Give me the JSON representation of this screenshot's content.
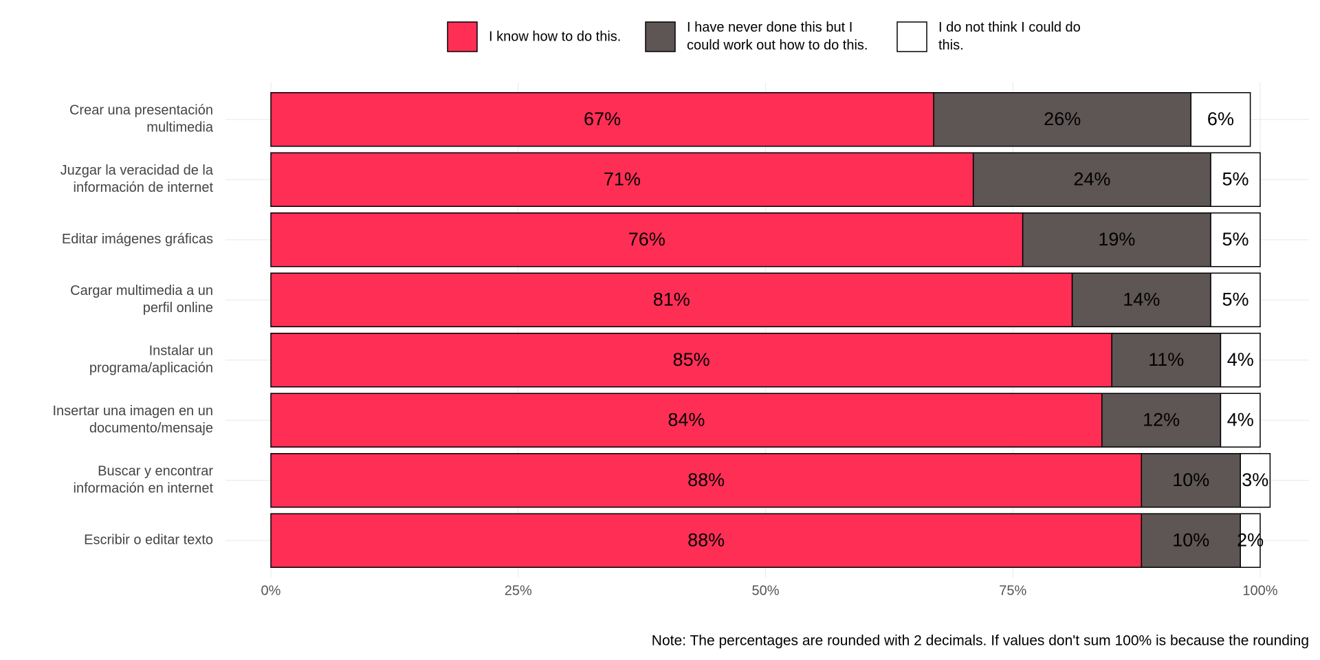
{
  "chart_data": {
    "type": "stacked-bar",
    "orientation": "horizontal",
    "categories": [
      "Crear una presentación\nmultimedia",
      "Juzgar la veracidad de la\ninformación de internet",
      "Editar imágenes gráficas",
      "Cargar multimedia a un\nperfil online",
      "Instalar un\nprograma/aplicación",
      "Insertar una imagen en un\ndocumento/mensaje",
      "Buscar y encontrar\ninformación en internet",
      "Escribir o editar texto"
    ],
    "series": [
      {
        "name": "I know how to do this.",
        "color": "#ff2e55",
        "values": [
          67,
          71,
          76,
          81,
          85,
          84,
          88,
          88
        ],
        "value_labels": [
          "67%",
          "71%",
          "76%",
          "81%",
          "85%",
          "84%",
          "88%",
          "88%"
        ]
      },
      {
        "name": "I have never done this but I\ncould work out how to do this.",
        "color": "#5e5555",
        "values": [
          26,
          24,
          19,
          14,
          11,
          12,
          10,
          10
        ],
        "value_labels": [
          "26%",
          "24%",
          "19%",
          "14%",
          "11%",
          "12%",
          "10%",
          "10%"
        ]
      },
      {
        "name": "I do not think I could do\nthis.",
        "color": "#ffffff",
        "values": [
          6,
          5,
          5,
          5,
          4,
          4,
          3,
          2
        ],
        "value_labels": [
          "6%",
          "5%",
          "5%",
          "5%",
          "4%",
          "4%",
          "3%",
          "2%"
        ]
      }
    ],
    "xlim": [
      0,
      100
    ],
    "xticks": [
      {
        "value": 0,
        "label": "0%"
      },
      {
        "value": 25,
        "label": "25%"
      },
      {
        "value": 50,
        "label": "50%"
      },
      {
        "value": 75,
        "label": "75%"
      },
      {
        "value": 100,
        "label": "100%"
      }
    ],
    "grid": true,
    "legend": "top",
    "note": "Note: The percentages are rounded with 2 decimals. If values don't sum 100% is because the rounding"
  }
}
